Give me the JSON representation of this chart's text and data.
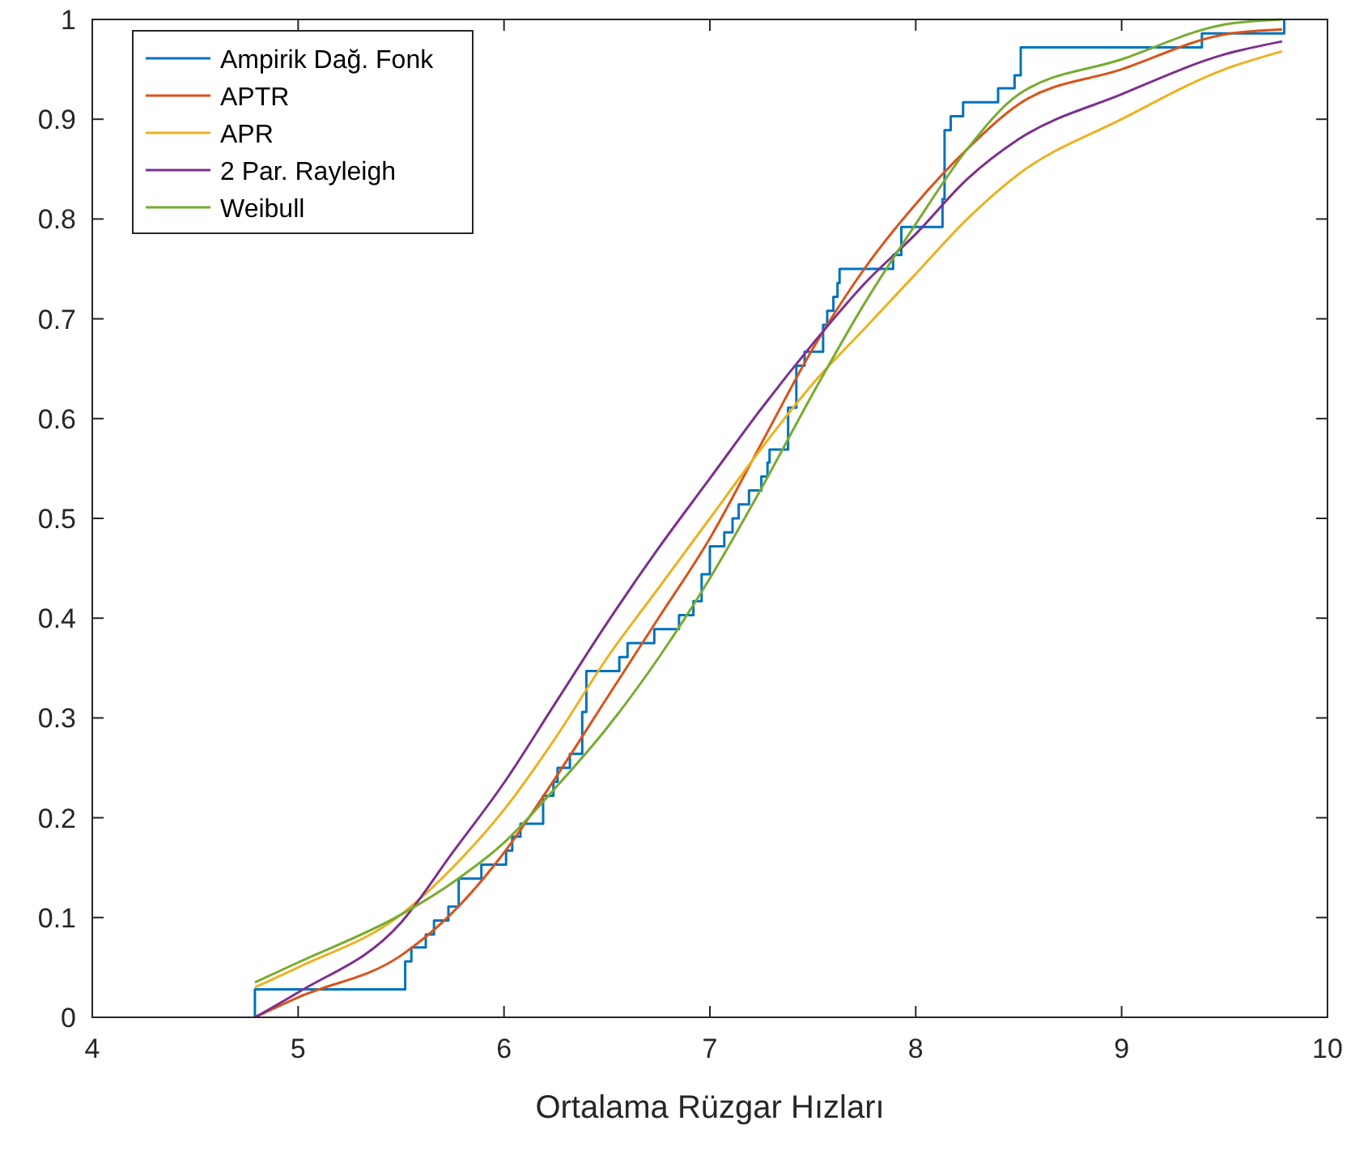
{
  "chart_data": {
    "type": "line",
    "xlabel": "Ortalama Rüzgar Hızları",
    "xlim": [
      4,
      10
    ],
    "ylim": [
      0,
      1
    ],
    "xticks": [
      4,
      5,
      6,
      7,
      8,
      9,
      10
    ],
    "yticks": [
      0,
      {
        "value": 0.1,
        "label": "0.1"
      },
      {
        "value": 0.2,
        "label": "0.2"
      },
      {
        "value": 0.3,
        "label": "0.3"
      },
      {
        "value": 0.4,
        "label": "0.4"
      },
      {
        "value": 0.5,
        "label": "0.5"
      },
      {
        "value": 0.6,
        "label": "0.6"
      },
      {
        "value": 0.7,
        "label": "0.7"
      },
      {
        "value": 0.8,
        "label": "0.8"
      },
      {
        "value": 0.9,
        "label": "0.9"
      },
      1
    ],
    "grid": false,
    "legend": "top left",
    "marker": "none",
    "line_style": "solid",
    "series": [
      {
        "name": "Ampirik Dağ. Fonk",
        "type": "step",
        "color": "#0072bd",
        "x": [
          4.79,
          4.79,
          5.52,
          5.55,
          5.62,
          5.66,
          5.73,
          5.78,
          5.89,
          6.01,
          6.04,
          6.08,
          6.19,
          6.24,
          6.26,
          6.32,
          6.38,
          6.4,
          6.56,
          6.6,
          6.73,
          6.85,
          6.92,
          6.96,
          7.0,
          7.07,
          7.11,
          7.14,
          7.19,
          7.25,
          7.28,
          7.29,
          7.38,
          7.42,
          7.46,
          7.55,
          7.57,
          7.6,
          7.62,
          7.63,
          7.89,
          7.93,
          8.13,
          8.14,
          8.17,
          8.23,
          8.4,
          8.48,
          8.51,
          9.39,
          9.79
        ],
        "values": [
          0,
          0.028,
          0.056,
          0.07,
          0.083,
          0.097,
          0.111,
          0.139,
          0.153,
          0.167,
          0.181,
          0.194,
          0.222,
          0.236,
          0.25,
          0.264,
          0.306,
          0.347,
          0.361,
          0.375,
          0.389,
          0.403,
          0.417,
          0.444,
          0.472,
          0.486,
          0.5,
          0.514,
          0.528,
          0.542,
          0.556,
          0.569,
          0.611,
          0.653,
          0.667,
          0.694,
          0.708,
          0.722,
          0.736,
          0.75,
          0.764,
          0.792,
          0.82,
          0.889,
          0.903,
          0.917,
          0.931,
          0.944,
          0.972,
          0.986,
          1
        ]
      },
      {
        "name": "APTR",
        "color": "#d95319",
        "x": [
          4.79,
          5.0,
          5.5,
          5.75,
          6.0,
          6.25,
          6.5,
          6.75,
          7.0,
          7.25,
          7.5,
          7.75,
          8.0,
          8.25,
          8.5,
          9.0,
          9.5,
          9.78
        ],
        "values": [
          0,
          0.02,
          0.062,
          0.105,
          0.165,
          0.24,
          0.32,
          0.4,
          0.48,
          0.575,
          0.67,
          0.75,
          0.815,
          0.87,
          0.915,
          0.95,
          0.985,
          0.99
        ]
      },
      {
        "name": "APR",
        "color": "#edb120",
        "x": [
          4.79,
          5.0,
          5.5,
          5.75,
          6.0,
          6.25,
          6.5,
          6.75,
          7.0,
          7.25,
          7.5,
          7.75,
          8.0,
          8.25,
          8.5,
          9.0,
          9.5,
          9.78
        ],
        "values": [
          0.03,
          0.05,
          0.103,
          0.15,
          0.208,
          0.28,
          0.36,
          0.43,
          0.5,
          0.57,
          0.635,
          0.69,
          0.745,
          0.8,
          0.845,
          0.9,
          0.95,
          0.968
        ]
      },
      {
        "name": "2 Par. Rayleigh",
        "color": "#7e2f8e",
        "x": [
          4.79,
          5.0,
          5.5,
          5.75,
          6.0,
          6.25,
          6.5,
          6.75,
          7.0,
          7.25,
          7.5,
          7.75,
          8.0,
          8.25,
          8.5,
          9.0,
          9.5,
          9.78
        ],
        "values": [
          0,
          0.025,
          0.095,
          0.165,
          0.235,
          0.315,
          0.395,
          0.47,
          0.54,
          0.61,
          0.675,
          0.735,
          0.785,
          0.84,
          0.88,
          0.925,
          0.965,
          0.978
        ]
      },
      {
        "name": "Weibull",
        "color": "#77ac30",
        "x": [
          4.79,
          5.0,
          5.5,
          5.75,
          6.0,
          6.25,
          6.5,
          6.75,
          7.0,
          7.25,
          7.5,
          7.75,
          8.0,
          8.25,
          8.5,
          9.0,
          9.5,
          9.78
        ],
        "values": [
          0.035,
          0.055,
          0.103,
          0.135,
          0.175,
          0.23,
          0.29,
          0.36,
          0.44,
          0.53,
          0.625,
          0.715,
          0.795,
          0.87,
          0.925,
          0.96,
          0.995,
          1
        ]
      }
    ]
  }
}
